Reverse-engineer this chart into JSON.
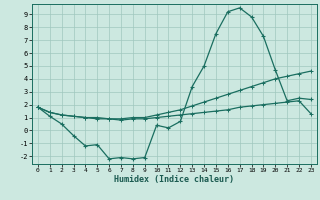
{
  "xlabel": "Humidex (Indice chaleur)",
  "bg_color": "#cce8e0",
  "line_color": "#1a6e60",
  "grid_color": "#a0c8be",
  "xlim": [
    -0.5,
    23.5
  ],
  "ylim": [
    -2.6,
    9.8
  ],
  "xticks": [
    0,
    1,
    2,
    3,
    4,
    5,
    6,
    7,
    8,
    9,
    10,
    11,
    12,
    13,
    14,
    15,
    16,
    17,
    18,
    19,
    20,
    21,
    22,
    23
  ],
  "yticks": [
    -2,
    -1,
    0,
    1,
    2,
    3,
    4,
    5,
    6,
    7,
    8,
    9
  ],
  "line1_x": [
    0,
    1,
    2,
    3,
    4,
    5,
    6,
    7,
    8,
    9,
    10,
    11,
    12,
    13,
    14,
    15,
    16,
    17,
    18,
    19,
    20,
    21,
    22,
    23
  ],
  "line1_y": [
    1.8,
    1.1,
    0.5,
    -0.4,
    -1.2,
    -1.1,
    -2.2,
    -2.1,
    -2.2,
    -2.1,
    0.4,
    0.2,
    0.7,
    3.4,
    5.0,
    7.5,
    9.2,
    9.5,
    8.8,
    7.3,
    4.7,
    2.3,
    2.5,
    2.4
  ],
  "line2_x": [
    0,
    1,
    2,
    3,
    4,
    5,
    6,
    7,
    8,
    9,
    10,
    11,
    12,
    13,
    14,
    15,
    16,
    17,
    18,
    19,
    20,
    21,
    22,
    23
  ],
  "line2_y": [
    1.8,
    1.4,
    1.2,
    1.1,
    1.0,
    1.0,
    0.9,
    0.9,
    1.0,
    1.0,
    1.2,
    1.4,
    1.6,
    1.9,
    2.2,
    2.5,
    2.8,
    3.1,
    3.4,
    3.7,
    4.0,
    4.2,
    4.4,
    4.6
  ],
  "line3_x": [
    0,
    1,
    2,
    3,
    4,
    5,
    6,
    7,
    8,
    9,
    10,
    11,
    12,
    13,
    14,
    15,
    16,
    17,
    18,
    19,
    20,
    21,
    22,
    23
  ],
  "line3_y": [
    1.8,
    1.4,
    1.2,
    1.1,
    1.0,
    0.9,
    0.9,
    0.8,
    0.9,
    0.9,
    1.0,
    1.1,
    1.2,
    1.3,
    1.4,
    1.5,
    1.6,
    1.8,
    1.9,
    2.0,
    2.1,
    2.2,
    2.3,
    1.3
  ]
}
